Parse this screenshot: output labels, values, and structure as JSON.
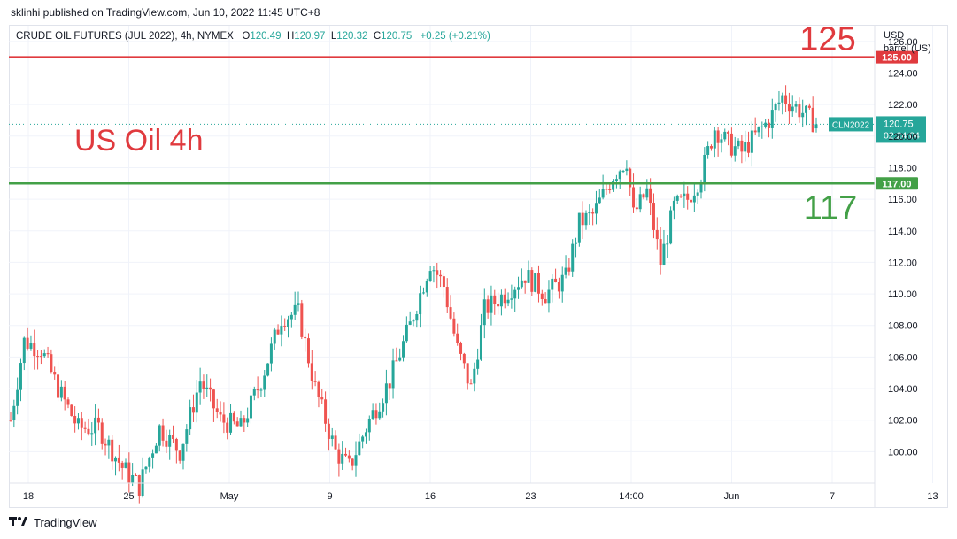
{
  "header": {
    "publisher": "sklinhi published on TradingView.com, Jun 10, 2022 11:45 UTC+8"
  },
  "legend": {
    "symbol": "CRUDE OIL FUTURES (JUL 2022), 4h, NYMEX",
    "open_label": "O",
    "open": "120.49",
    "high_label": "H",
    "high": "120.97",
    "low_label": "L",
    "low": "120.32",
    "close_label": "C",
    "close": "120.75",
    "change": "+0.25 (+0.21%)"
  },
  "axis_unit": {
    "currency": "USD",
    "unit": "barrel (US)"
  },
  "footer": {
    "brand": "TradingView"
  },
  "colors": {
    "up": "#26a69a",
    "down": "#ef5350",
    "red_line": "#e03a3e",
    "green_line": "#43a047",
    "grid": "#f0f3fa",
    "text": "#131722"
  },
  "chart_data": {
    "type": "candlestick",
    "title": "US Oil 4h",
    "ylim": [
      98,
      127
    ],
    "x_tick_labels": [
      "18",
      "25",
      "May",
      "9",
      "16",
      "23",
      "14:00",
      "Jun",
      "7",
      "13"
    ],
    "y_tick_labels": [
      "100.00",
      "102.00",
      "104.00",
      "106.00",
      "108.00",
      "110.00",
      "112.00",
      "114.00",
      "116.00",
      "118.00",
      "120.00",
      "122.00",
      "124.00",
      "126.00"
    ],
    "horizontal_lines": [
      {
        "label": "125",
        "value": 125.0,
        "price_label": "125.00",
        "color": "#e03a3e"
      },
      {
        "label": "117",
        "value": 117.0,
        "price_label": "117.00",
        "color": "#43a047"
      }
    ],
    "last_price": {
      "symbol": "CLN2022",
      "price": "120.75",
      "countdown": "02:24:04",
      "value": 120.75
    },
    "close_path": [
      [
        0,
        102.0
      ],
      [
        4,
        107.0
      ],
      [
        9,
        106.5
      ],
      [
        14,
        104.0
      ],
      [
        20,
        101.5
      ],
      [
        26,
        101.5
      ],
      [
        33,
        99.0
      ],
      [
        38,
        97.8
      ],
      [
        44,
        101.5
      ],
      [
        50,
        100.0
      ],
      [
        56,
        104.5
      ],
      [
        62,
        102.0
      ],
      [
        68,
        101.5
      ],
      [
        74,
        104.5
      ],
      [
        80,
        108.5
      ],
      [
        85,
        108.8
      ],
      [
        90,
        104.0
      ],
      [
        96,
        100.0
      ],
      [
        100,
        99.0
      ],
      [
        106,
        102.0
      ],
      [
        112,
        104.5
      ],
      [
        118,
        108.0
      ],
      [
        124,
        112.0
      ],
      [
        128,
        110.5
      ],
      [
        132,
        106.5
      ],
      [
        136,
        104.0
      ],
      [
        140,
        109.0
      ],
      [
        146,
        110.0
      ],
      [
        152,
        111.2
      ],
      [
        158,
        110.0
      ],
      [
        164,
        111.0
      ],
      [
        168,
        114.5
      ],
      [
        172,
        115.0
      ],
      [
        178,
        117.5
      ],
      [
        182,
        118.5
      ],
      [
        184,
        115.0
      ],
      [
        188,
        116.5
      ],
      [
        192,
        112.0
      ],
      [
        196,
        115.5
      ],
      [
        200,
        116.0
      ],
      [
        204,
        117.5
      ],
      [
        208,
        120.5
      ],
      [
        212,
        119.5
      ],
      [
        216,
        119.0
      ],
      [
        220,
        120.0
      ],
      [
        224,
        121.0
      ],
      [
        228,
        122.5
      ],
      [
        234,
        121.5
      ],
      [
        238,
        120.75
      ]
    ]
  }
}
